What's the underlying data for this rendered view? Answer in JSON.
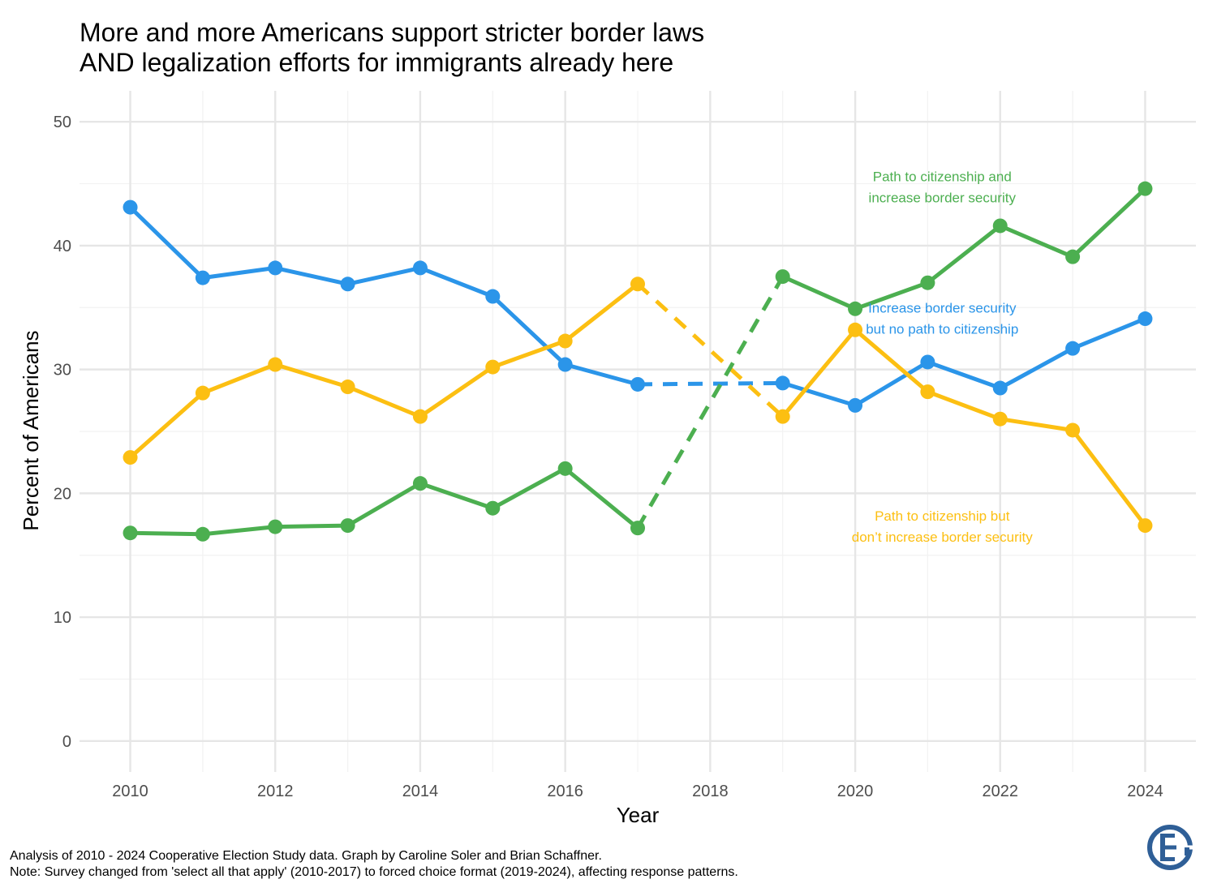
{
  "title_lines": [
    "More and more Americans support stricter border laws",
    "AND legalization efforts for immigrants already here"
  ],
  "caption_lines": [
    "Analysis of 2010 - 2024 Cooperative Election Study data. Graph by Caroline Soler and Brian Schaffner.",
    "Note: Survey changed from 'select all that apply' (2010-2017) to forced choice format (2019-2024), affecting response patterns."
  ],
  "logo": {
    "icon": "ces-logo-icon",
    "color": "#2f5f97"
  },
  "chart_data": {
    "type": "line",
    "title": "More and more Americans support stricter border laws AND legalization efforts for immigrants already here",
    "xlabel": "Year",
    "ylabel": "Percent of Americans",
    "xlim": [
      2009.3,
      2024.7
    ],
    "ylim": [
      -2.5,
      52.5
    ],
    "x_ticks": [
      2010,
      2012,
      2014,
      2016,
      2018,
      2020,
      2022,
      2024
    ],
    "y_ticks": [
      0,
      10,
      20,
      30,
      40,
      50
    ],
    "grid": true,
    "legend": "none (direct labels)",
    "gap": {
      "from": 2017,
      "to": 2019,
      "style": "dashed"
    },
    "series": [
      {
        "name": "Increase border security but no path to citizenship",
        "label_lines": [
          "Increase border security",
          "but no path to citizenship"
        ],
        "label_at": [
          2021.2,
          34.6
        ],
        "color": "#2b95e9",
        "points": [
          [
            2010,
            43.1
          ],
          [
            2011,
            37.4
          ],
          [
            2012,
            38.2
          ],
          [
            2013,
            36.9
          ],
          [
            2014,
            38.2
          ],
          [
            2015,
            35.9
          ],
          [
            2016,
            30.4
          ],
          [
            2017,
            28.8
          ],
          [
            2019,
            28.9
          ],
          [
            2020,
            27.1
          ],
          [
            2021,
            30.6
          ],
          [
            2022,
            28.5
          ],
          [
            2023,
            31.7
          ],
          [
            2024,
            34.1
          ]
        ]
      },
      {
        "name": "Path to citizenship but don't increase border security",
        "label_lines": [
          "Path to citizenship but",
          "don’t increase border security"
        ],
        "label_at": [
          2021.2,
          17.8
        ],
        "color": "#fcbf12",
        "points": [
          [
            2010,
            22.9
          ],
          [
            2011,
            28.1
          ],
          [
            2012,
            30.4
          ],
          [
            2013,
            28.6
          ],
          [
            2014,
            26.2
          ],
          [
            2015,
            30.2
          ],
          [
            2016,
            32.3
          ],
          [
            2017,
            36.9
          ],
          [
            2019,
            26.2
          ],
          [
            2020,
            33.2
          ],
          [
            2021,
            28.2
          ],
          [
            2022,
            26.0
          ],
          [
            2023,
            25.1
          ],
          [
            2024,
            17.4
          ]
        ]
      },
      {
        "name": "Path to citizenship and increase border security",
        "label_lines": [
          "Path to citizenship and",
          "increase border security"
        ],
        "label_at": [
          2021.2,
          45.2
        ],
        "color": "#4caf50",
        "points": [
          [
            2010,
            16.8
          ],
          [
            2011,
            16.7
          ],
          [
            2012,
            17.3
          ],
          [
            2013,
            17.4
          ],
          [
            2014,
            20.8
          ],
          [
            2015,
            18.8
          ],
          [
            2016,
            22.0
          ],
          [
            2017,
            17.2
          ],
          [
            2019,
            37.5
          ],
          [
            2020,
            34.9
          ],
          [
            2021,
            37.0
          ],
          [
            2022,
            41.6
          ],
          [
            2023,
            39.1
          ],
          [
            2024,
            44.6
          ]
        ]
      }
    ]
  }
}
